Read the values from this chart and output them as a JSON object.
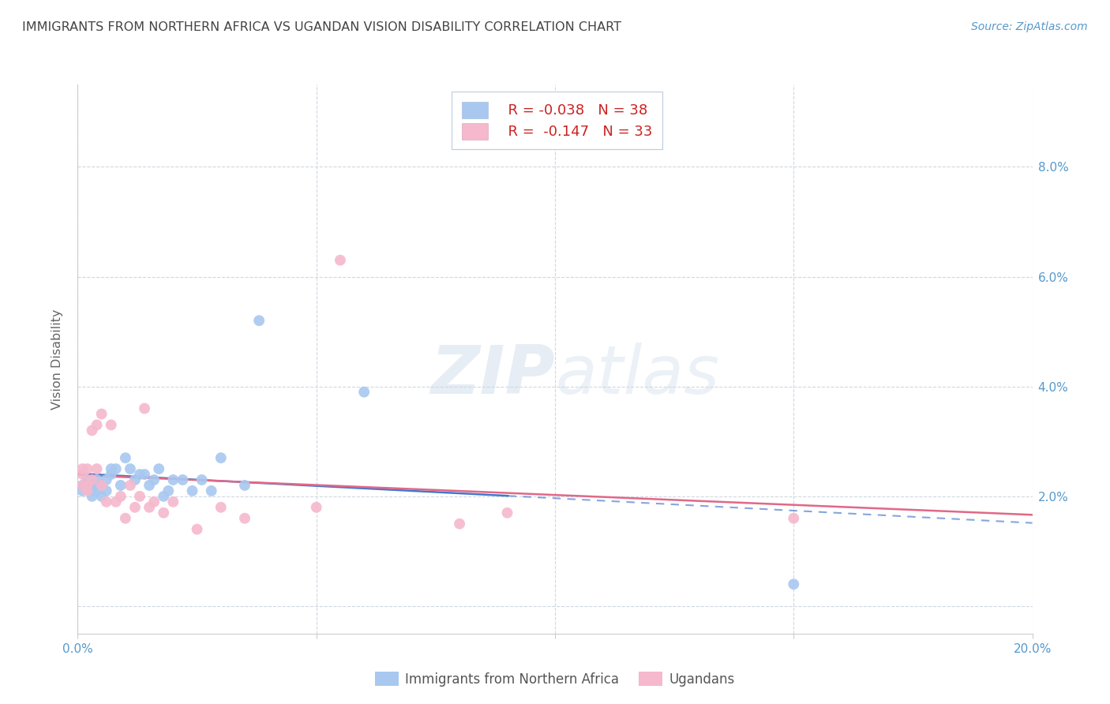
{
  "title": "IMMIGRANTS FROM NORTHERN AFRICA VS UGANDAN VISION DISABILITY CORRELATION CHART",
  "source": "Source: ZipAtlas.com",
  "ylabel": "Vision Disability",
  "xlim": [
    0.0,
    0.2
  ],
  "ylim": [
    -0.005,
    0.095
  ],
  "yticks": [
    0.0,
    0.02,
    0.04,
    0.06,
    0.08
  ],
  "ytick_labels": [
    "",
    "2.0%",
    "4.0%",
    "6.0%",
    "8.0%"
  ],
  "xticks": [
    0.0,
    0.05,
    0.1,
    0.15,
    0.2
  ],
  "xtick_labels": [
    "0.0%",
    "",
    "",
    "",
    "20.0%"
  ],
  "legend_blue_r": "-0.038",
  "legend_blue_n": "38",
  "legend_pink_r": "-0.147",
  "legend_pink_n": "33",
  "blue_color": "#a8c8f0",
  "pink_color": "#f5b8cc",
  "blue_line_color": "#4477cc",
  "pink_line_color": "#e06888",
  "title_color": "#444444",
  "axis_color": "#5599cc",
  "watermark_zip": "ZIP",
  "watermark_atlas": "atlas",
  "blue_x": [
    0.001,
    0.001,
    0.002,
    0.002,
    0.003,
    0.003,
    0.003,
    0.004,
    0.004,
    0.004,
    0.005,
    0.005,
    0.006,
    0.006,
    0.007,
    0.007,
    0.008,
    0.009,
    0.01,
    0.011,
    0.012,
    0.013,
    0.014,
    0.015,
    0.016,
    0.017,
    0.018,
    0.019,
    0.02,
    0.022,
    0.024,
    0.026,
    0.028,
    0.03,
    0.035,
    0.038,
    0.06,
    0.15
  ],
  "blue_y": [
    0.021,
    0.022,
    0.022,
    0.023,
    0.02,
    0.021,
    0.022,
    0.022,
    0.021,
    0.023,
    0.022,
    0.02,
    0.021,
    0.023,
    0.024,
    0.025,
    0.025,
    0.022,
    0.027,
    0.025,
    0.023,
    0.024,
    0.024,
    0.022,
    0.023,
    0.025,
    0.02,
    0.021,
    0.023,
    0.023,
    0.021,
    0.023,
    0.021,
    0.027,
    0.022,
    0.052,
    0.039,
    0.004
  ],
  "pink_x": [
    0.001,
    0.001,
    0.001,
    0.002,
    0.002,
    0.002,
    0.003,
    0.003,
    0.004,
    0.004,
    0.005,
    0.005,
    0.006,
    0.007,
    0.008,
    0.009,
    0.01,
    0.011,
    0.012,
    0.013,
    0.014,
    0.015,
    0.016,
    0.018,
    0.02,
    0.025,
    0.03,
    0.035,
    0.05,
    0.055,
    0.08,
    0.09,
    0.15
  ],
  "pink_y": [
    0.022,
    0.024,
    0.025,
    0.021,
    0.022,
    0.025,
    0.023,
    0.032,
    0.025,
    0.033,
    0.035,
    0.022,
    0.019,
    0.033,
    0.019,
    0.02,
    0.016,
    0.022,
    0.018,
    0.02,
    0.036,
    0.018,
    0.019,
    0.017,
    0.019,
    0.014,
    0.018,
    0.016,
    0.018,
    0.063,
    0.015,
    0.017,
    0.016
  ]
}
